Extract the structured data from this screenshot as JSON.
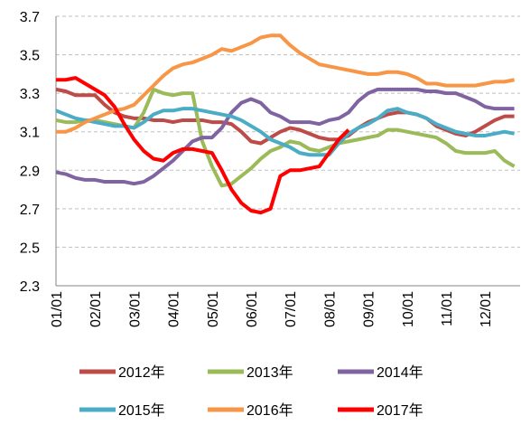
{
  "chart_data": {
    "type": "line",
    "categories": [
      "01/01",
      null,
      null,
      null,
      "02/01",
      null,
      null,
      null,
      "03/01",
      null,
      null,
      null,
      "04/01",
      null,
      null,
      null,
      "05/01",
      null,
      null,
      null,
      "06/01",
      null,
      null,
      null,
      "07/01",
      null,
      null,
      null,
      "08/01",
      null,
      null,
      null,
      "09/01",
      null,
      null,
      null,
      "10/01",
      null,
      null,
      null,
      "11/01",
      null,
      null,
      null,
      "12/01",
      null,
      null,
      null
    ],
    "ylim": [
      2.3,
      3.7
    ],
    "yticks": [
      2.3,
      2.5,
      2.7,
      2.9,
      3.1,
      3.3,
      3.5,
      3.7
    ],
    "grid": true,
    "legend": "bottom",
    "series": [
      {
        "name": "2012年",
        "color": "#be4b48",
        "values": [
          3.32,
          3.31,
          3.29,
          3.29,
          3.29,
          3.24,
          3.2,
          3.18,
          3.17,
          3.17,
          3.16,
          3.16,
          3.15,
          3.16,
          3.16,
          3.16,
          3.15,
          3.15,
          3.14,
          3.1,
          3.05,
          3.04,
          3.07,
          3.1,
          3.12,
          3.11,
          3.09,
          3.07,
          3.06,
          3.06,
          3.08,
          3.12,
          3.15,
          3.17,
          3.19,
          3.2,
          3.2,
          3.19,
          3.17,
          3.13,
          3.11,
          3.09,
          3.08,
          3.1,
          3.13,
          3.16,
          3.18,
          3.18
        ]
      },
      {
        "name": "2013年",
        "color": "#9bbb59",
        "values": [
          3.16,
          3.15,
          3.15,
          3.16,
          3.16,
          3.15,
          3.14,
          3.13,
          3.12,
          3.2,
          3.32,
          3.3,
          3.29,
          3.3,
          3.3,
          3.05,
          2.92,
          2.82,
          2.83,
          2.87,
          2.91,
          2.96,
          3.0,
          3.02,
          3.05,
          3.04,
          3.01,
          3.0,
          3.02,
          3.04,
          3.05,
          3.06,
          3.07,
          3.08,
          3.11,
          3.11,
          3.1,
          3.09,
          3.08,
          3.07,
          3.04,
          3.0,
          2.99,
          2.99,
          2.99,
          3.0,
          2.95,
          2.92
        ]
      },
      {
        "name": "2014年",
        "color": "#8064a2",
        "values": [
          2.89,
          2.88,
          2.86,
          2.85,
          2.85,
          2.84,
          2.84,
          2.84,
          2.83,
          2.84,
          2.87,
          2.91,
          2.95,
          3.0,
          3.05,
          3.07,
          3.07,
          3.12,
          3.2,
          3.25,
          3.27,
          3.25,
          3.2,
          3.18,
          3.15,
          3.15,
          3.15,
          3.14,
          3.16,
          3.17,
          3.2,
          3.26,
          3.3,
          3.32,
          3.32,
          3.32,
          3.32,
          3.32,
          3.31,
          3.31,
          3.3,
          3.3,
          3.28,
          3.26,
          3.23,
          3.22,
          3.22,
          3.22
        ]
      },
      {
        "name": "2015年",
        "color": "#4bacc6",
        "values": [
          3.21,
          3.19,
          3.17,
          3.16,
          3.15,
          3.14,
          3.13,
          3.13,
          3.12,
          3.15,
          3.19,
          3.21,
          3.21,
          3.22,
          3.22,
          3.21,
          3.2,
          3.19,
          3.18,
          3.16,
          3.13,
          3.1,
          3.06,
          3.04,
          3.02,
          2.99,
          2.98,
          2.98,
          2.98,
          3.04,
          3.09,
          3.12,
          3.14,
          3.17,
          3.21,
          3.22,
          3.2,
          3.19,
          3.17,
          3.14,
          3.12,
          3.1,
          3.09,
          3.08,
          3.08,
          3.09,
          3.1,
          3.09
        ]
      },
      {
        "name": "2016年",
        "color": "#f79646",
        "values": [
          3.1,
          3.1,
          3.12,
          3.15,
          3.17,
          3.19,
          3.21,
          3.22,
          3.24,
          3.29,
          3.34,
          3.39,
          3.43,
          3.45,
          3.46,
          3.48,
          3.5,
          3.53,
          3.52,
          3.54,
          3.56,
          3.59,
          3.6,
          3.6,
          3.55,
          3.51,
          3.48,
          3.45,
          3.44,
          3.43,
          3.42,
          3.41,
          3.4,
          3.4,
          3.41,
          3.41,
          3.4,
          3.38,
          3.35,
          3.35,
          3.34,
          3.34,
          3.34,
          3.34,
          3.35,
          3.36,
          3.36,
          3.37
        ]
      },
      {
        "name": "2017年",
        "color": "#ff0000",
        "values": [
          3.37,
          3.37,
          3.38,
          3.35,
          3.32,
          3.29,
          3.23,
          3.14,
          3.06,
          3.0,
          2.96,
          2.95,
          2.99,
          3.01,
          3.01,
          3.0,
          2.99,
          2.9,
          2.8,
          2.73,
          2.69,
          2.68,
          2.7,
          2.87,
          2.9,
          2.9,
          2.91,
          2.92,
          2.99,
          3.06,
          3.11,
          null,
          null,
          null,
          null,
          null,
          null,
          null,
          null,
          null,
          null,
          null,
          null,
          null,
          null,
          null,
          null,
          null
        ]
      }
    ]
  }
}
